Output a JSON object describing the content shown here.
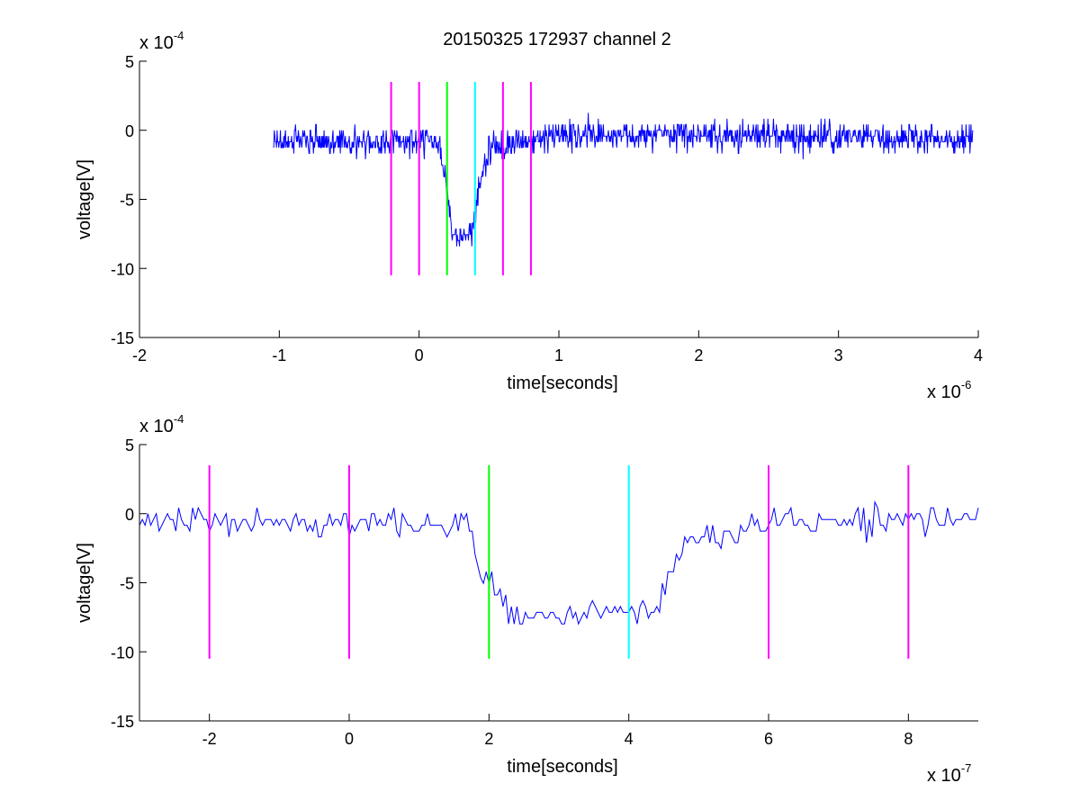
{
  "figure_title": "20150325 172937 channel 2",
  "chart_data": [
    {
      "type": "line",
      "name": "top",
      "xlabel": "time[seconds]",
      "ylabel": "voltage[V]",
      "x_scale_exponent": -6,
      "y_scale_exponent": -4,
      "xlim": [
        -2,
        4
      ],
      "ylim": [
        -15,
        5
      ],
      "xticks": [
        -2,
        -1,
        0,
        1,
        2,
        3,
        4
      ],
      "yticks": [
        -15,
        -10,
        -5,
        0,
        5
      ],
      "grid": false,
      "signal": {
        "color": "#0000ff",
        "x_start": -1.04,
        "x_end": 3.96,
        "n_points": 1250,
        "profile": [
          [
            -1.04,
            -0.8
          ],
          [
            0.15,
            -0.8
          ],
          [
            0.2,
            -4.5
          ],
          [
            0.22,
            -6.0
          ],
          [
            0.25,
            -7.5
          ],
          [
            0.37,
            -7.8
          ],
          [
            0.42,
            -4.5
          ],
          [
            0.5,
            -1.2
          ],
          [
            1.0,
            -0.3
          ],
          [
            3.96,
            -0.6
          ]
        ],
        "noise_amplitude": 1.1
      },
      "markers": [
        {
          "x": -0.2,
          "color": "#ff00ff",
          "ymin": -10.5,
          "ymax": 3.5
        },
        {
          "x": 0.0,
          "color": "#ff00ff",
          "ymin": -10.5,
          "ymax": 3.5
        },
        {
          "x": 0.2,
          "color": "#00ff00",
          "ymin": -10.5,
          "ymax": 3.5
        },
        {
          "x": 0.4,
          "color": "#00ffff",
          "ymin": -10.5,
          "ymax": 3.5
        },
        {
          "x": 0.6,
          "color": "#ff00ff",
          "ymin": -10.5,
          "ymax": 3.5
        },
        {
          "x": 0.8,
          "color": "#ff00ff",
          "ymin": -10.5,
          "ymax": 3.5
        }
      ]
    },
    {
      "type": "line",
      "name": "bottom",
      "xlabel": "time[seconds]",
      "ylabel": "voltage[V]",
      "x_scale_exponent": -7,
      "y_scale_exponent": -4,
      "xlim": [
        -3,
        9
      ],
      "ylim": [
        -15,
        5
      ],
      "xticks": [
        -2,
        0,
        2,
        4,
        6,
        8
      ],
      "yticks": [
        -15,
        -10,
        -5,
        0,
        5
      ],
      "grid": false,
      "signal": {
        "color": "#0000ff",
        "x_start": -3,
        "x_end": 9,
        "n_points": 301,
        "profile": [
          [
            -3,
            -0.6
          ],
          [
            1.65,
            -0.8
          ],
          [
            1.8,
            -3.0
          ],
          [
            2.0,
            -5.0
          ],
          [
            2.3,
            -7.5
          ],
          [
            3.3,
            -7.3
          ],
          [
            4.4,
            -7.0
          ],
          [
            4.6,
            -4.0
          ],
          [
            5.0,
            -1.5
          ],
          [
            6.0,
            -0.8
          ],
          [
            9.0,
            -0.3
          ]
        ],
        "noise_amplitude": 1.0
      },
      "markers": [
        {
          "x": -2,
          "color": "#ff00ff",
          "ymin": -10.5,
          "ymax": 3.5
        },
        {
          "x": 0,
          "color": "#ff00ff",
          "ymin": -10.5,
          "ymax": 3.5
        },
        {
          "x": 2,
          "color": "#00ff00",
          "ymin": -10.5,
          "ymax": 3.5
        },
        {
          "x": 4,
          "color": "#00ffff",
          "ymin": -10.5,
          "ymax": 3.5
        },
        {
          "x": 6,
          "color": "#ff00ff",
          "ymin": -10.5,
          "ymax": 3.5
        },
        {
          "x": 8,
          "color": "#ff00ff",
          "ymin": -10.5,
          "ymax": 3.5
        }
      ]
    }
  ]
}
